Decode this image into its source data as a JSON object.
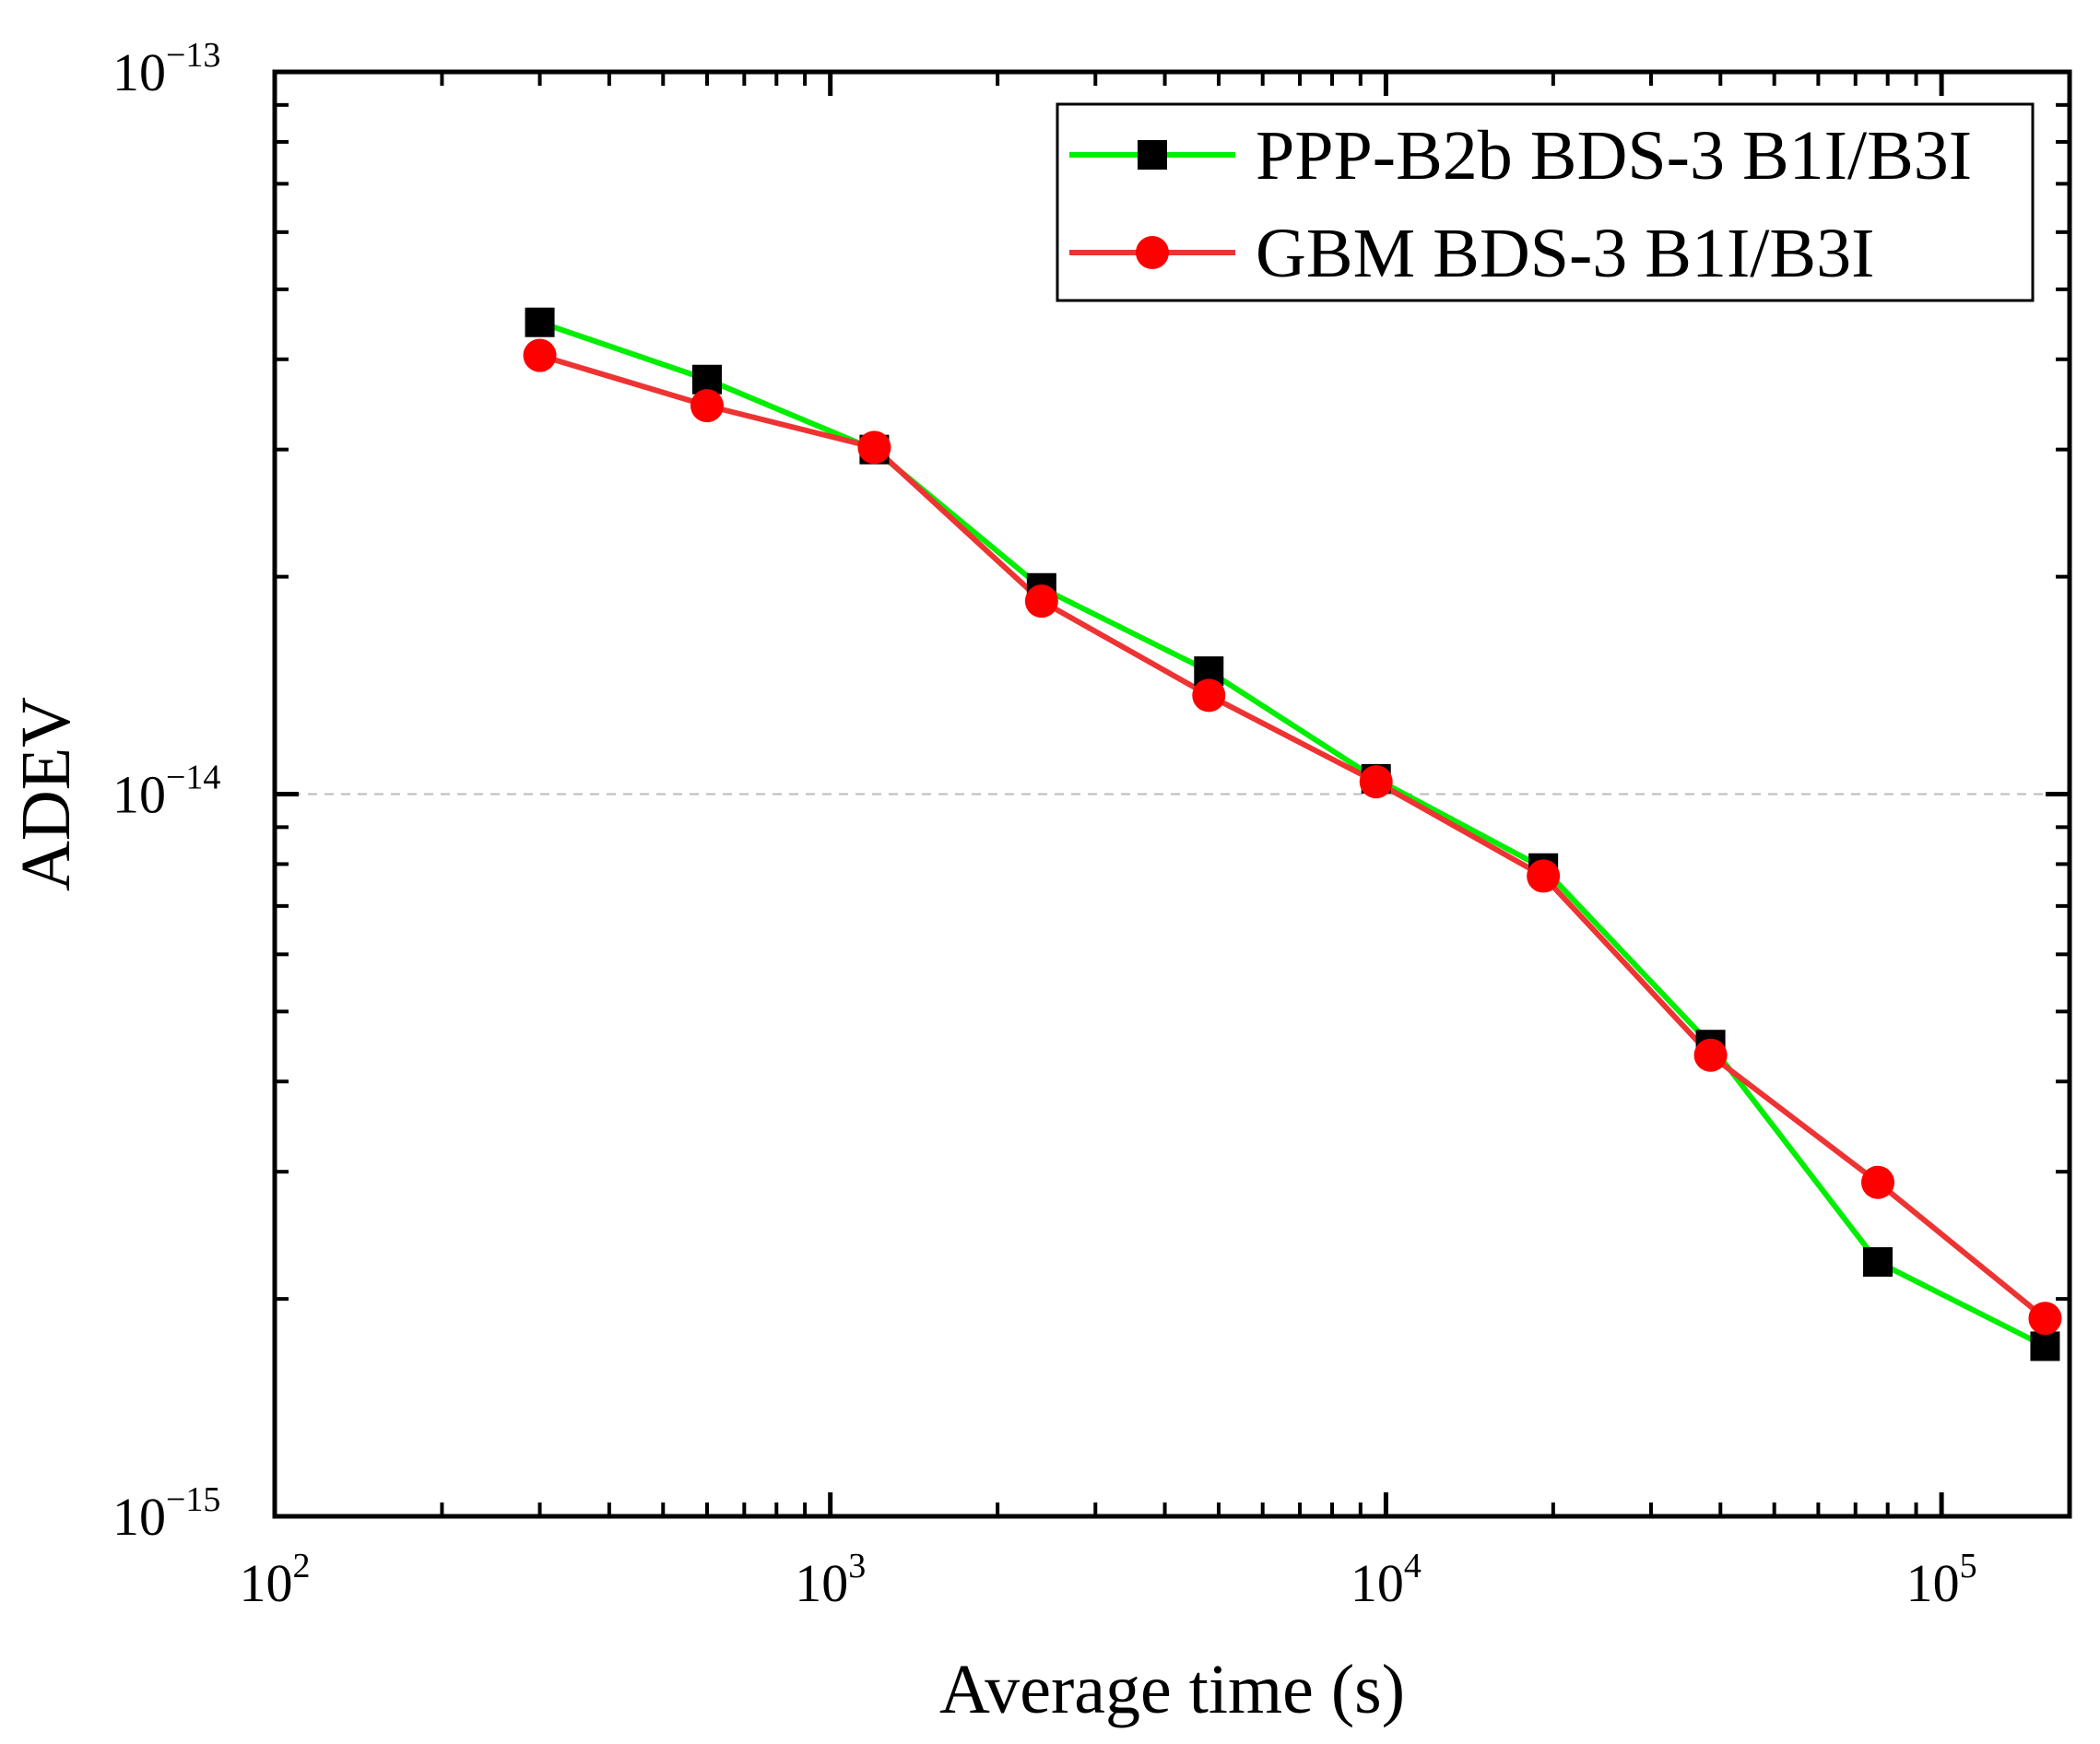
{
  "chart_data": {
    "type": "line",
    "title": "",
    "xlabel": "Average time (s)",
    "ylabel": "ADEV",
    "xscale": "log",
    "yscale": "log",
    "xlim": [
      100,
      170000
    ],
    "ylim": [
      1e-15,
      1e-13
    ],
    "x_ticks": [
      {
        "value": 100,
        "base": "10",
        "exp": "2"
      },
      {
        "value": 1000,
        "base": "10",
        "exp": "3"
      },
      {
        "value": 10000,
        "base": "10",
        "exp": "4"
      },
      {
        "value": 100000,
        "base": "10",
        "exp": "5"
      }
    ],
    "y_ticks": [
      {
        "value": 1e-15,
        "base": "10",
        "exp": "−15"
      },
      {
        "value": 1e-14,
        "base": "10",
        "exp": "−14"
      },
      {
        "value": 1e-13,
        "base": "10",
        "exp": "−13"
      }
    ],
    "legend_position": "top-right",
    "reference_line": {
      "y": 1e-14,
      "style": "dashed"
    },
    "series": [
      {
        "name": "PPP-B2b BDS-3 B1I/B3I",
        "line_color": "#00ee00",
        "marker": "square",
        "marker_color": "#000000",
        "x": [
          300,
          600,
          1200,
          2400,
          4800,
          9600,
          19200,
          38400,
          76800,
          153600
        ],
        "y": [
          4.5e-14,
          3.75e-14,
          3e-14,
          1.93e-14,
          1.48e-14,
          1.05e-14,
          7.9e-15,
          4.5e-15,
          2.25e-15,
          1.72e-15
        ]
      },
      {
        "name": "GBM BDS-3 B1I/B3I",
        "line_color": "#ee3333",
        "marker": "circle",
        "marker_color": "#ff0000",
        "x": [
          300,
          600,
          1200,
          2400,
          4800,
          9600,
          19200,
          38400,
          76800,
          153600
        ],
        "y": [
          4.05e-14,
          3.45e-14,
          3.02e-14,
          1.85e-14,
          1.37e-14,
          1.04e-14,
          7.7e-15,
          4.35e-15,
          2.9e-15,
          1.88e-15
        ]
      }
    ]
  }
}
